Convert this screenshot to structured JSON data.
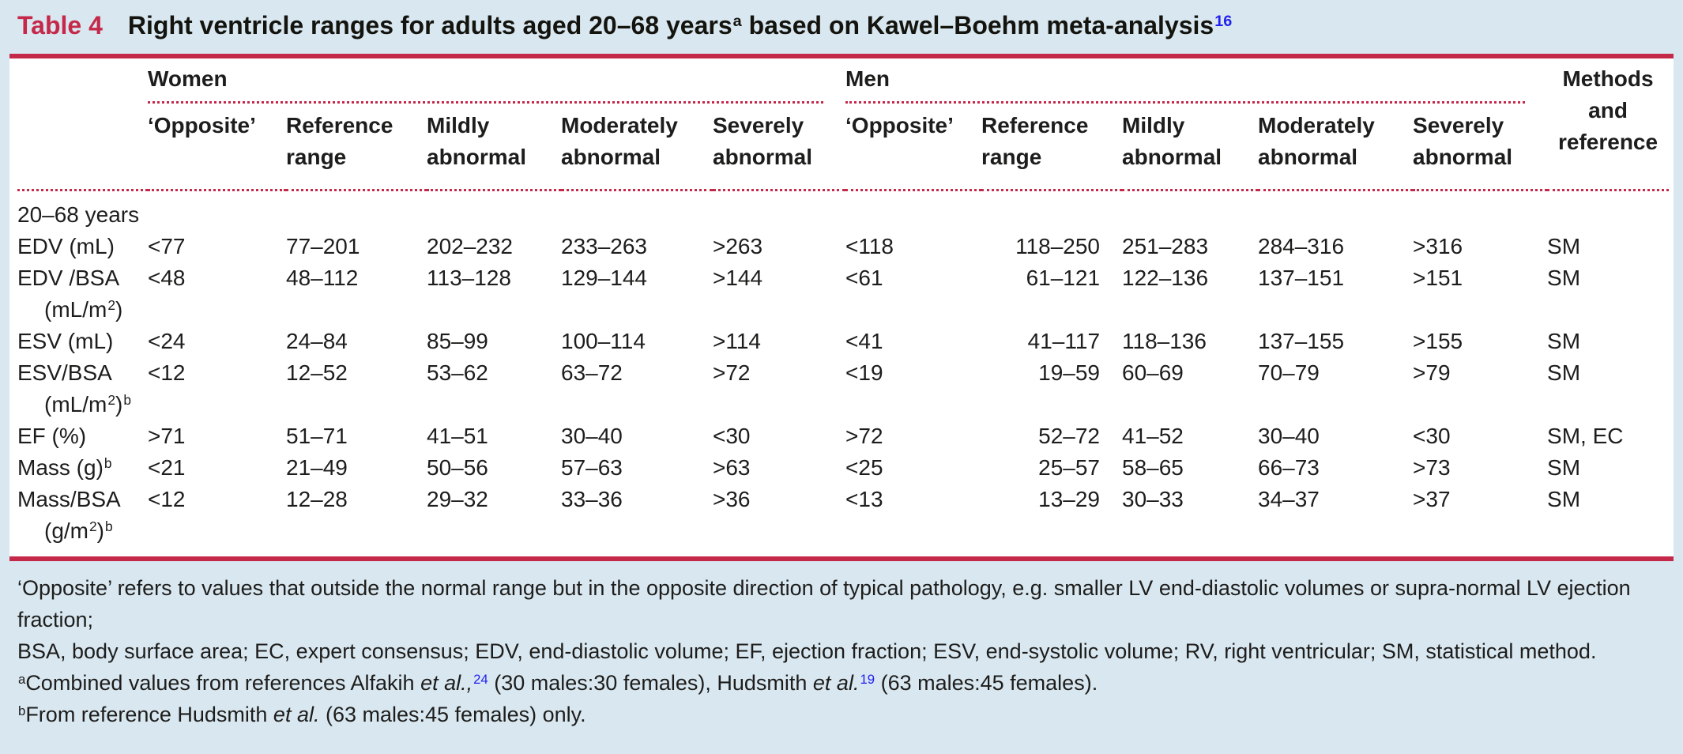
{
  "title": {
    "label": "Table 4",
    "text": "Right ventricle ranges for adults aged 20–68 years^{a} based on Kawel–Boehm meta-analysis^{16|blue}"
  },
  "table": {
    "groups": {
      "women": "Women",
      "men": "Men",
      "methods": "Methods\nand\nreference"
    },
    "subheaders": [
      "‘Opposite’",
      "Reference\nrange",
      "Mildly\nabnormal",
      "Moderately\nabnormal",
      "Severely\nabnormal"
    ],
    "rows": [
      {
        "section": true,
        "label": "20–68 years"
      },
      {
        "label": "EDV (mL)",
        "label2": "",
        "women": [
          "<77",
          "77–201",
          "202–232",
          "233–263",
          ">263"
        ],
        "men": [
          "<118",
          "118–250",
          "251–283",
          "284–316",
          ">316"
        ],
        "methods": "SM"
      },
      {
        "label": "EDV /BSA",
        "label2": "(mL/m^{2})",
        "women": [
          "<48",
          "48–112",
          "113–128",
          "129–144",
          ">144"
        ],
        "men": [
          "<61",
          "61–121",
          "122–136",
          "137–151",
          ">151"
        ],
        "methods": "SM"
      },
      {
        "label": "ESV (mL)",
        "label2": "",
        "women": [
          "<24",
          "24–84",
          "85–99",
          "100–114",
          ">114"
        ],
        "men": [
          "<41",
          "41–117",
          "118–136",
          "137–155",
          ">155"
        ],
        "methods": "SM"
      },
      {
        "label": "ESV/BSA",
        "label2": "(mL/m^{2})^{b}",
        "women": [
          "<12",
          "12–52",
          "53–62",
          "63–72",
          ">72"
        ],
        "men": [
          "<19",
          "19–59",
          "60–69",
          "70–79",
          ">79"
        ],
        "methods": "SM"
      },
      {
        "label": "EF (%)",
        "label2": "",
        "women": [
          ">71",
          "51–71",
          "41–51",
          "30–40",
          "<30"
        ],
        "men": [
          ">72",
          "52–72",
          "41–52",
          "30–40",
          "<30"
        ],
        "methods": "SM, EC"
      },
      {
        "label": "Mass (g)^{b}",
        "label2": "",
        "women": [
          "<21",
          "21–49",
          "50–56",
          "57–63",
          ">63"
        ],
        "men": [
          "<25",
          "25–57",
          "58–65",
          "66–73",
          ">73"
        ],
        "methods": "SM"
      },
      {
        "label": "Mass/BSA",
        "label2": "(g/m^{2})^{b}",
        "women": [
          "<12",
          "12–28",
          "29–32",
          "33–36",
          ">36"
        ],
        "men": [
          "<13",
          "13–29",
          "30–33",
          "34–37",
          ">37"
        ],
        "methods": "SM"
      }
    ]
  },
  "footnotes": [
    "‘Opposite’ refers to values that outside the normal range but in the opposite direction of typical pathology, e.g. smaller LV end-diastolic volumes or supra-normal LV ejection fraction;",
    "BSA, body surface area; EC, expert consensus; EDV, end-diastolic volume; EF, ejection fraction; ESV, end-systolic volume; RV, right ventricular; SM, statistical method.",
    "^{a}Combined values from references Alfakih _{et al.,}^{24|blue} (30 males:30 females), Hudsmith _{et al.}^{19|blue} (63 males:45 females).",
    "^{b}From reference Hudsmith _{et al.} (63 males:45 females) only.",
    "colors_note"
  ],
  "colors": {
    "accent": "#c5294a",
    "reference_blue": "#2222ee",
    "page_background": "#d9e7f0",
    "table_background": "#ffffff",
    "text": "#1d1d1b"
  }
}
